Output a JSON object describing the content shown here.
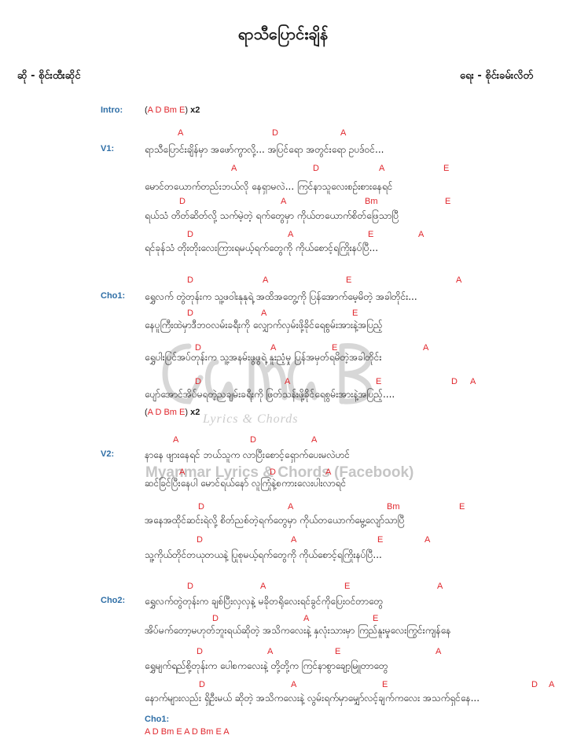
{
  "header": {
    "title": "ရာသီပြောင်းချိန်",
    "singer": "ဆို - စိုင်းထီးဆိုင်",
    "writer": "ရေး - စိုင်းခမ်းလိတ်"
  },
  "intro": {
    "label": "Intro:",
    "open": "(",
    "chords": "A D Bm E",
    "close": ")",
    "repeat": "x2"
  },
  "sections": {
    "v1": {
      "label": "V1:"
    },
    "cho1": {
      "label": "Cho1:"
    },
    "v2": {
      "label": "V2:"
    },
    "cho2": {
      "label": "Cho2:"
    },
    "cho1_end": {
      "label": "Cho1:"
    }
  },
  "lines": [
    {
      "text": "ရာသီပြောင်းချိန်မှာ အဖော်ကွာလို့... အပြင်ရော အတွင်းရော ဥပဒ်ဝင်...",
      "chords": [
        "A",
        "D",
        "A"
      ]
    },
    {
      "text": "မောင်တယောက်တည်းဘယ်လို နေရှာမလဲ... ကြင်နာသူလေးစဉ်းစားနေရင်",
      "chords": [
        "A",
        "D",
        "A",
        "E"
      ]
    },
    {
      "text": "ရယ်သံ တိတ်ဆိတ်လို့ သက်မဲ့တဲ့ ရက်တွေမှာ ကိုယ်တယောက်စိတ်ဖြေသာပြီ",
      "chords": [
        "D",
        "A",
        "Bm",
        "E"
      ]
    },
    {
      "text": "ရင်ခုန်သံ တိုးတိုးလေးကြားရမယ့်ရက်တွေကို ကိုယ်စောင့်ရကြိုးနပ်ပြီ...",
      "chords": [
        "D",
        "A",
        "E",
        "A"
      ]
    },
    {
      "text": "ရွှေလက် တွဲတုန်းက သူ့ဖဝါးနုနုရဲ့ အထိအတွေ့ကို ပြန်အောက်မေ့မိတဲ့ အခါတိုင်း...",
      "chords": [
        "D",
        "A",
        "E",
        "A"
      ]
    },
    {
      "text": "နေပူကြီးထဲမှာဒီဘဝလမ်းခရီးကို လျှောက်လှမ်းဖို့ခိုင်ရေစွမ်းအားနဲ့အပြည့်",
      "chords": [
        "D",
        "A",
        "E"
      ]
    },
    {
      "text": "ရွှေပါးပြင်အပ်တုန်းက သူ့အနမ်းဖွဖွရဲ့ နူးညံ့မှု ပြန်အမှတ်ရမိတဲ့အခါတိုင်း",
      "chords": [
        "D",
        "A",
        "E",
        "A"
      ]
    },
    {
      "text": "ပျော်အောင်အိပ်မရတဲ့ညချမ်းခရီးကို ဖြတ်သန်းဖို့ခိုင်ရေစွမ်းအားနဲ့အပြည့်....",
      "chords": [
        "D",
        "A",
        "E",
        "D",
        "A"
      ]
    },
    {
      "text": "နာနေ ဖျားနေရင် ဘယ်သူက လာပြီးစောင့်ရှောက်ပေးမလဲဟင်",
      "chords": [
        "A",
        "D",
        "A"
      ]
    },
    {
      "text": "ဆင်ခြင်ပြီးနေပါ မောင်ရယ်နော် လူကြုံနဲ့စကားလေးပါးလာရင်",
      "chords": [
        "A",
        "D",
        "A"
      ]
    },
    {
      "text": "အနေအထိုင်ဆင်းရဲလို့ စိတ်ညစ်တဲ့ရက်တွေမှာ ကိုယ်တယောက်မွေ့လျော်သာပြီ",
      "chords": [
        "D",
        "A",
        "Bm",
        "E"
      ]
    },
    {
      "text": "သူ့ကိုယ်တိုင်တယုတယနဲ့ ပြုစုမယ့်ရက်တွေကို ကိုယ်စောင့်ရကြိုးနပ်ပြီ...",
      "chords": [
        "D",
        "A",
        "E",
        "A"
      ]
    },
    {
      "text": "ရွှေလက်တွဲတုန်းက ချစ်ပြီးလှလှနဲ့ မခိုတရိုလေးရင်ခွင်ကိုပြေးဝင်တာတွေ",
      "chords": [
        "D",
        "A",
        "E",
        "A"
      ]
    },
    {
      "text": "အိပ်မက်တော့မဟုတ်ဘူးရယ်ဆိုတဲ့ အသိကလေးနဲ့ နှလုံးသားမှာ ကြည်နူးမှုလေးကြွင်းကျန်နေ",
      "chords": [
        "D",
        "A",
        "E"
      ]
    },
    {
      "text": "ရွှေမျက်ရည်စို့တုန်းက ပေါစကလေးနဲ့ တို့တို့က ကြင်နာစွာချော့မြူတာတွေ",
      "chords": [
        "D",
        "A",
        "E",
        "A"
      ]
    },
    {
      "text": "နောက်များလည်း ရှိဦးမယ် ဆိုတဲ့ အသိကလေးနဲ့ လွမ်းရက်မှာမျှော်လင့်ချက်ကလေး အသက်ရှင်နေ...",
      "chords": [
        "D",
        "A",
        "E",
        "D",
        "A"
      ]
    }
  ],
  "cho1_repeat": {
    "open": "(",
    "chords": "A D Bm E",
    "close": ")",
    "repeat": "x2"
  },
  "final_chords": "A D Bm E A D Bm E A",
  "watermark": {
    "brand": "Myanmar Lyrics & Chords (Facebook)",
    "sub": "Lyrics & Chords"
  },
  "colors": {
    "chord": "#e0262c",
    "section_label": "#2e6ea6",
    "text": "#1a1a1a"
  }
}
